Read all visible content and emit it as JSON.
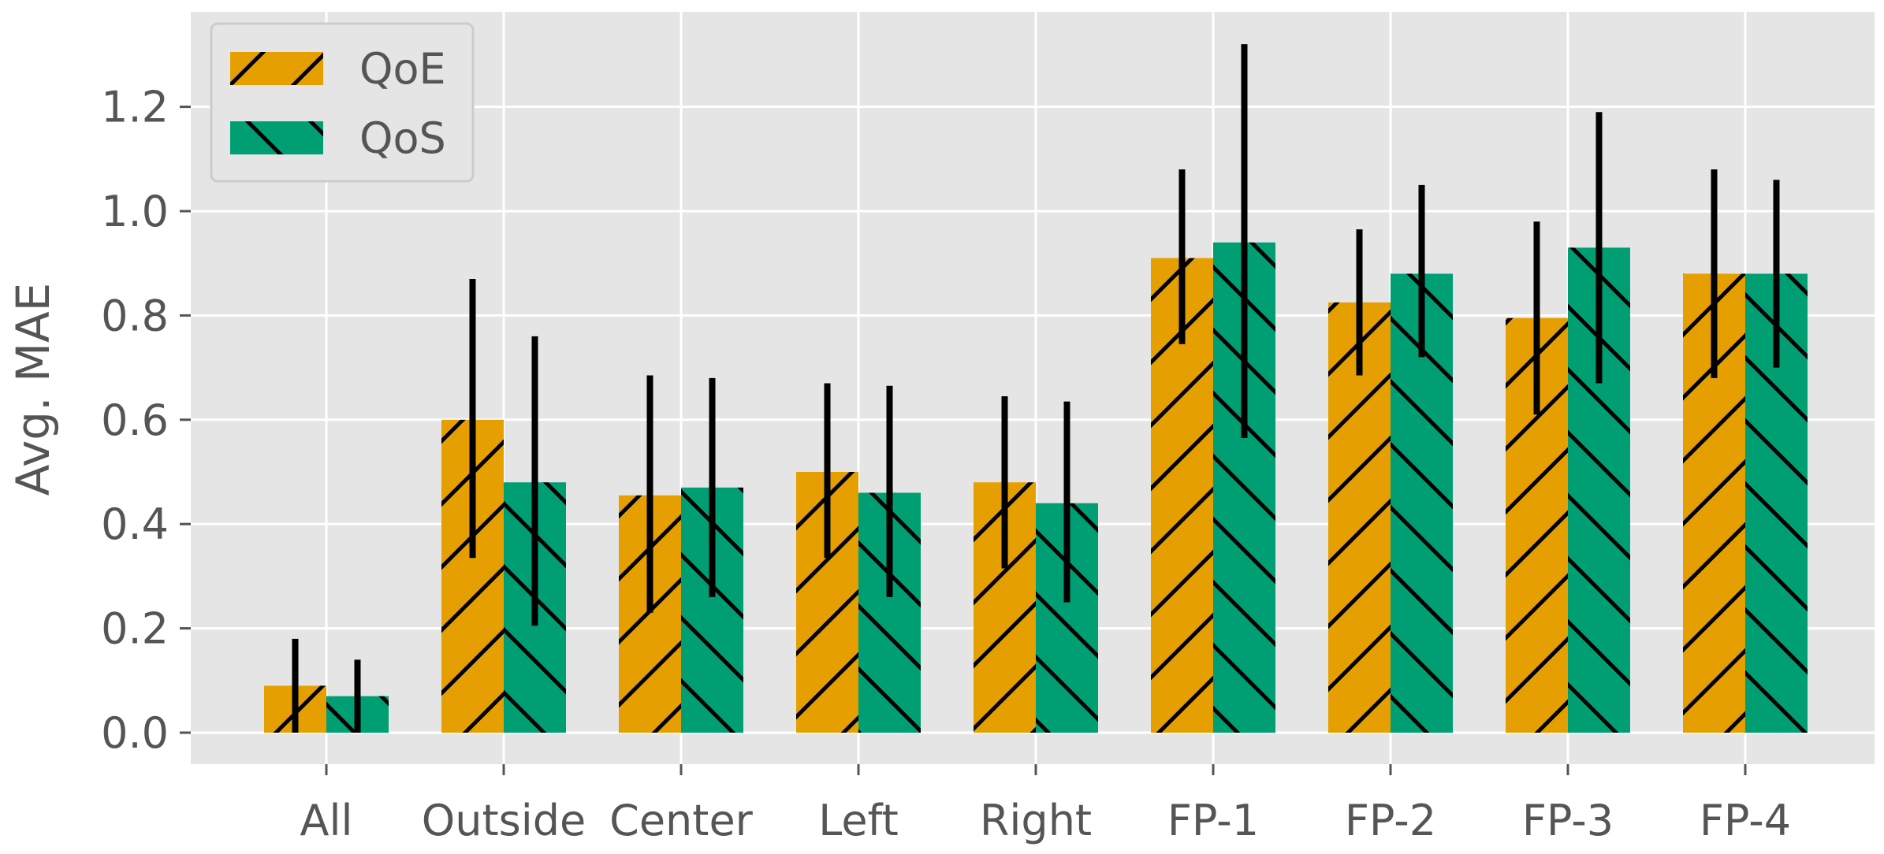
{
  "chart_data": {
    "type": "bar",
    "title": "",
    "xlabel": "",
    "ylabel": "Avg. MAE",
    "ylim": [
      -0.06,
      1.38
    ],
    "yticks": [
      0.0,
      0.2,
      0.4,
      0.6,
      0.8,
      1.0,
      1.2
    ],
    "ytick_labels": [
      "0.0",
      "0.2",
      "0.4",
      "0.6",
      "0.8",
      "1.0",
      "1.2"
    ],
    "grid": true,
    "legend_position": "top-left",
    "categories": [
      "All",
      "Outside",
      "Center",
      "Left",
      "Right",
      "FP-1",
      "FP-2",
      "FP-3",
      "FP-4"
    ],
    "series": [
      {
        "name": "QoE",
        "color": "#E69F00",
        "hatch": "forward-diagonal",
        "values": [
          0.09,
          0.6,
          0.455,
          0.5,
          0.48,
          0.91,
          0.825,
          0.795,
          0.88
        ],
        "error_low": [
          0.0,
          0.335,
          0.23,
          0.335,
          0.315,
          0.745,
          0.685,
          0.61,
          0.68
        ],
        "error_high": [
          0.18,
          0.87,
          0.685,
          0.67,
          0.645,
          1.08,
          0.965,
          0.98,
          1.08
        ]
      },
      {
        "name": "QoS",
        "color": "#009E73",
        "hatch": "back-diagonal",
        "values": [
          0.07,
          0.48,
          0.47,
          0.46,
          0.44,
          0.94,
          0.88,
          0.93,
          0.88
        ],
        "error_low": [
          0.0,
          0.205,
          0.26,
          0.26,
          0.25,
          0.565,
          0.72,
          0.67,
          0.7
        ],
        "error_high": [
          0.14,
          0.76,
          0.68,
          0.665,
          0.635,
          1.32,
          1.05,
          1.19,
          1.06
        ]
      }
    ],
    "plot_background": "#E5E5E5",
    "grid_color": "#FFFFFF",
    "error_bar_color": "#000000",
    "hatch_color": "#000000"
  }
}
